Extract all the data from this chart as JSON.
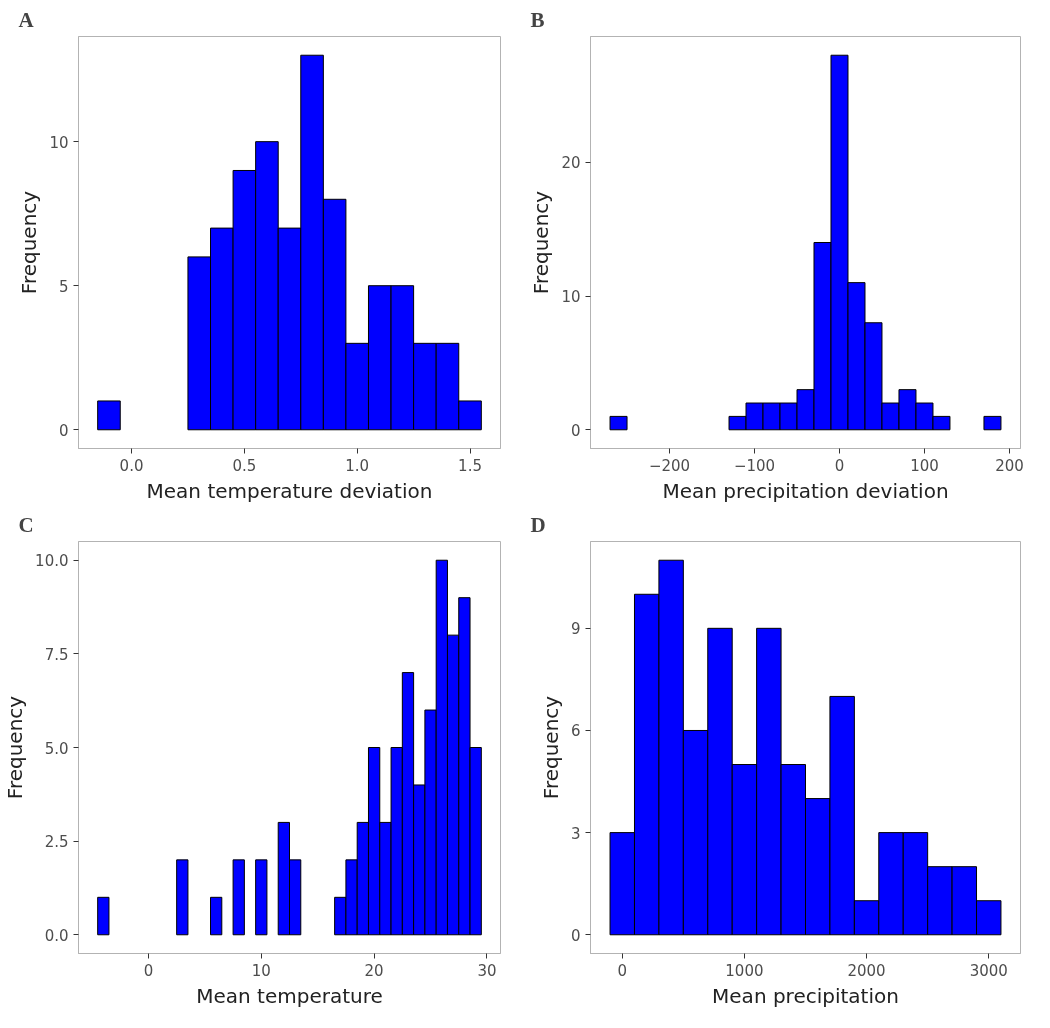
{
  "chart_data": [
    {
      "type": "histogram",
      "title": "A",
      "xlabel": "Mean temperature deviation",
      "ylabel": "Frequency",
      "color": "#0000ff",
      "bins": [
        -0.15,
        -0.05,
        0.05,
        0.15,
        0.25,
        0.35,
        0.45,
        0.55,
        0.65,
        0.75,
        0.85,
        0.95,
        1.05,
        1.15,
        1.25,
        1.35,
        1.45,
        1.55
      ],
      "values": [
        1,
        0,
        0,
        0,
        6,
        7,
        9,
        10,
        7,
        13,
        8,
        3,
        5,
        5,
        3,
        3,
        1
      ],
      "xlim": [
        -0.235,
        1.635
      ],
      "xticks": [
        {
          "value": 0,
          "label": "0.0"
        },
        0.5,
        {
          "value": 1,
          "label": "1.0"
        },
        1.5
      ],
      "ylim": [
        -0.65,
        13.65
      ],
      "yticks": [
        0,
        5,
        10
      ]
    },
    {
      "type": "histogram",
      "title": "B",
      "xlabel": "Mean precipitation deviation",
      "ylabel": "Frequency",
      "color": "#0000ff",
      "bins": [
        -270,
        -250,
        -230,
        -210,
        -190,
        -170,
        -150,
        -130,
        -110,
        -90,
        -70,
        -50,
        -30,
        -10,
        10,
        30,
        50,
        70,
        90,
        110,
        130,
        150,
        170,
        190
      ],
      "values": [
        1,
        0,
        0,
        0,
        0,
        0,
        0,
        1,
        2,
        2,
        2,
        3,
        14,
        28,
        11,
        8,
        2,
        3,
        2,
        1,
        0,
        0,
        1
      ],
      "xlim": [
        -293,
        213
      ],
      "xticks": [
        -200,
        -100,
        0,
        100,
        200
      ],
      "ylim": [
        -1.4,
        29.4
      ],
      "yticks": [
        0,
        10,
        20
      ]
    },
    {
      "type": "histogram",
      "title": "C",
      "xlabel": "Mean temperature",
      "ylabel": "Frequency",
      "color": "#0000ff",
      "bins": [
        -4.5,
        -3.5,
        -2.5,
        -1.5,
        -0.5,
        0.5,
        1.5,
        2.5,
        3.5,
        4.5,
        5.5,
        6.5,
        7.5,
        8.5,
        9.5,
        10.5,
        11.5,
        12.5,
        13.5,
        14.5,
        15.5,
        16.5,
        17.5,
        18.5,
        19.5,
        20.5,
        21.5,
        22.5,
        23.5,
        24.5,
        25.5,
        26.5,
        27.5,
        28.5,
        29.5
      ],
      "values": [
        1,
        0,
        0,
        0,
        0,
        0,
        0,
        2,
        0,
        0,
        1,
        0,
        2,
        0,
        2,
        0,
        3,
        2,
        0,
        0,
        0,
        1,
        2,
        3,
        5,
        3,
        5,
        7,
        4,
        6,
        10,
        8,
        9,
        5
      ],
      "xlim": [
        -6.2,
        31.2
      ],
      "xticks": [
        0,
        10,
        20,
        30
      ],
      "ylim": [
        -0.5,
        10.5
      ],
      "yticks": [
        {
          "value": 0,
          "label": "0.0"
        },
        2.5,
        {
          "value": 5,
          "label": "5.0"
        },
        7.5,
        {
          "value": 10,
          "label": "10.0"
        }
      ]
    },
    {
      "type": "histogram",
      "title": "D",
      "xlabel": "Mean precipitation",
      "ylabel": "Frequency",
      "color": "#0000ff",
      "bins": [
        -100,
        100,
        300,
        500,
        700,
        900,
        1100,
        1300,
        1500,
        1700,
        1900,
        2100,
        2300,
        2500,
        2700,
        2900,
        3100
      ],
      "values": [
        3,
        10,
        11,
        6,
        9,
        5,
        9,
        5,
        4,
        7,
        1,
        3,
        3,
        2,
        2,
        1
      ],
      "xlim": [
        -260,
        3260
      ],
      "xticks": [
        0,
        1000,
        2000,
        3000
      ],
      "ylim": [
        -0.55,
        11.55
      ],
      "yticks": [
        0,
        3,
        6,
        9
      ]
    }
  ]
}
